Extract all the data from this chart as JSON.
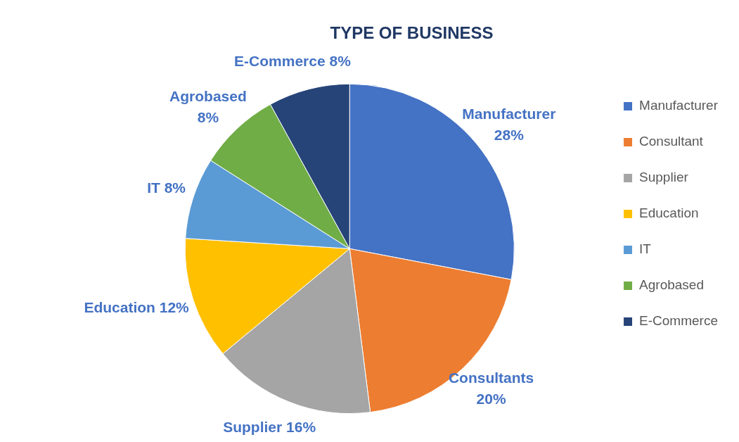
{
  "chart_data": {
    "type": "pie",
    "title": "TYPE OF BUSINESS",
    "categories": [
      "Manufacturer",
      "Consultant",
      "Supplier",
      "Education",
      "IT",
      "Agrobased",
      "E-Commerce"
    ],
    "values": [
      28,
      20,
      16,
      12,
      8,
      8,
      8
    ],
    "colors": [
      "#4472c4",
      "#ed7d31",
      "#a5a5a5",
      "#ffc000",
      "#5b9bd5",
      "#70ad47",
      "#264478"
    ],
    "value_labels": [
      "Manufacturer 28%",
      "Consultants 20%",
      "Supplier 16%",
      "Education 12%",
      "IT 8%",
      "Agrobased 8%",
      "E-Commerce 8%"
    ],
    "legend": "right"
  }
}
